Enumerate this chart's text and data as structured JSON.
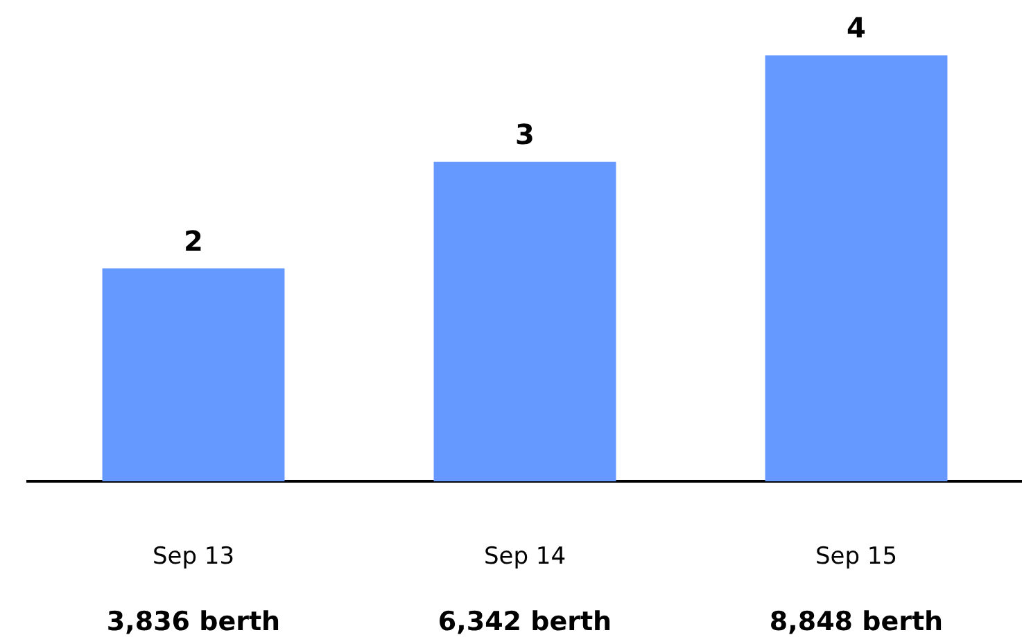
{
  "chart_data": {
    "type": "bar",
    "categories": [
      "Sep 13",
      "Sep 14",
      "Sep 15"
    ],
    "values": [
      2,
      3,
      4
    ],
    "color": "#6699ff",
    "data_labels": true,
    "grid": false,
    "legend": false,
    "tick_labels": "x",
    "annotations": [
      "3,836 berth",
      "6,342 berth",
      "8,848 berth"
    ]
  }
}
